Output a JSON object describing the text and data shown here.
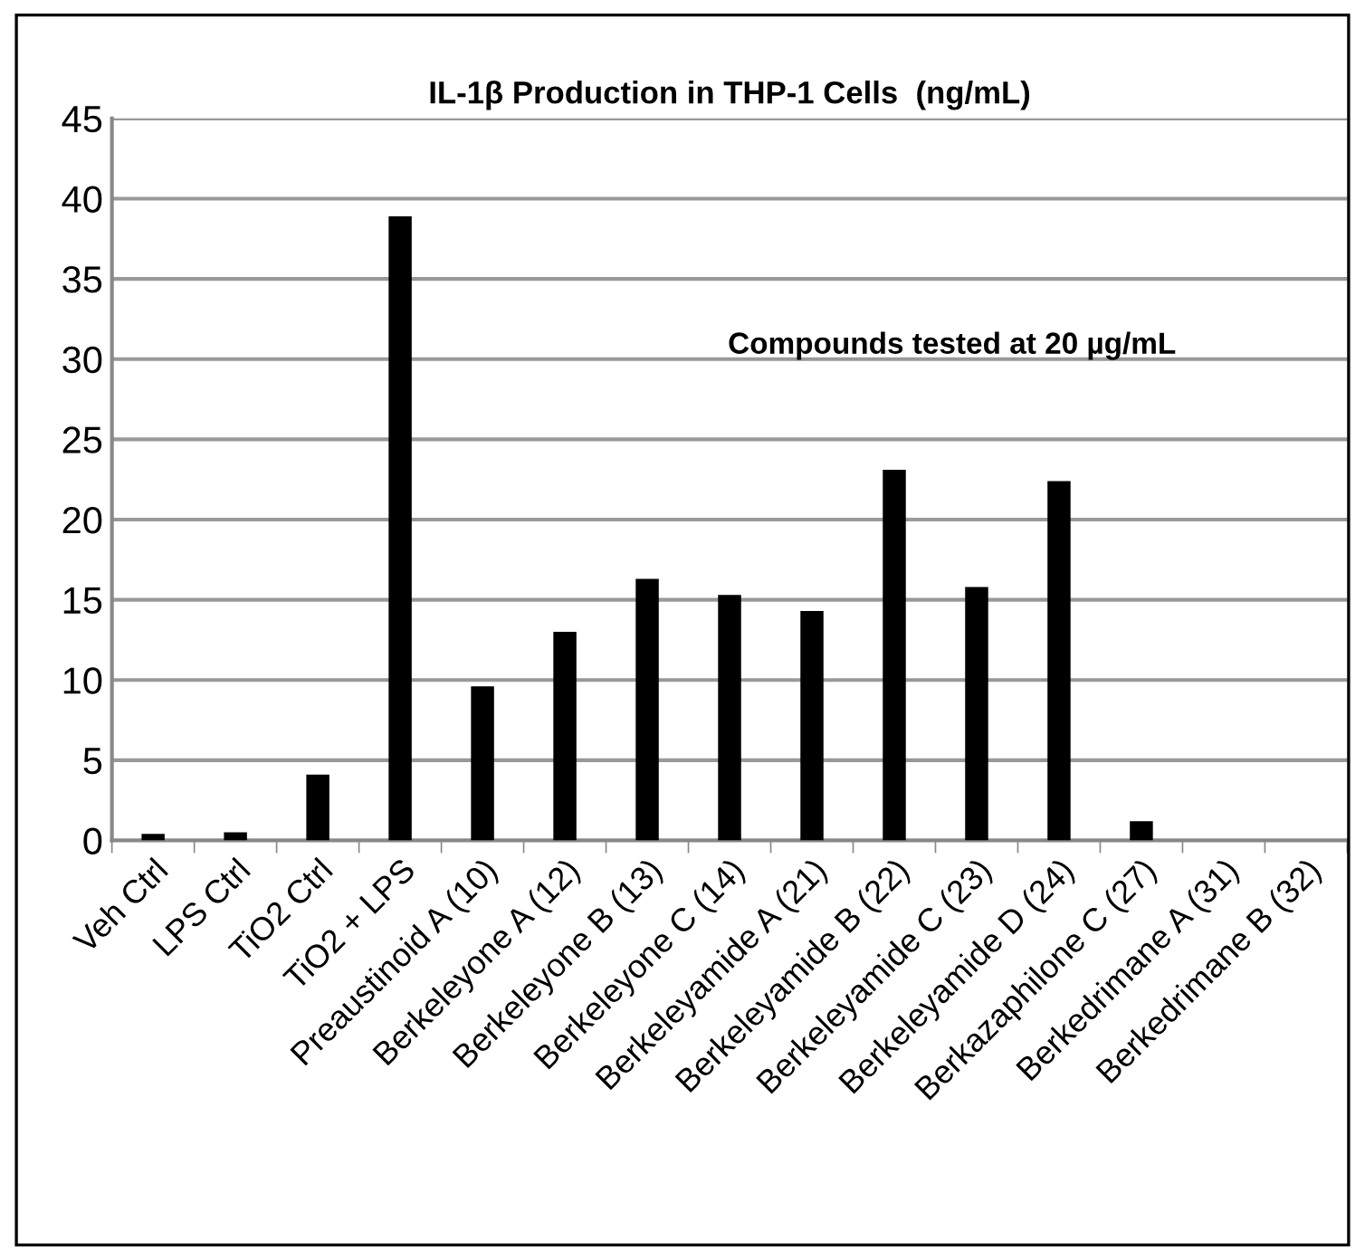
{
  "chart_data": {
    "type": "bar",
    "title": "IL-1β Production in THP-1 Cells  (ng/mL)",
    "categories": [
      "Veh Ctrl",
      "LPS Ctrl",
      "TiO2 Ctrl",
      "TiO2 + LPS",
      "Preaustinoid A (10)",
      "Berkeleyone A (12)",
      "Berkeleyone B (13)",
      "Berkeleyone C (14)",
      "Berkeleyamide A (21)",
      "Berkeleyamide B (22)",
      "Berkeleyamide C (23)",
      "Berkeleyamide D (24)",
      "Berkazaphilone C (27)",
      "Berkedrimane A (31)",
      "Berkedrimane B (32)"
    ],
    "values": [
      0.4,
      0.5,
      4.1,
      38.9,
      9.6,
      13.0,
      16.3,
      15.3,
      14.3,
      23.1,
      15.8,
      22.4,
      1.2,
      0,
      0
    ],
    "color": "#000000",
    "ylim": [
      0,
      45
    ],
    "yticks": [
      0,
      5,
      10,
      15,
      20,
      25,
      30,
      35,
      40,
      45
    ],
    "grid": "y",
    "annotations": [
      "Compounds tested at 20 µg/mL"
    ]
  }
}
